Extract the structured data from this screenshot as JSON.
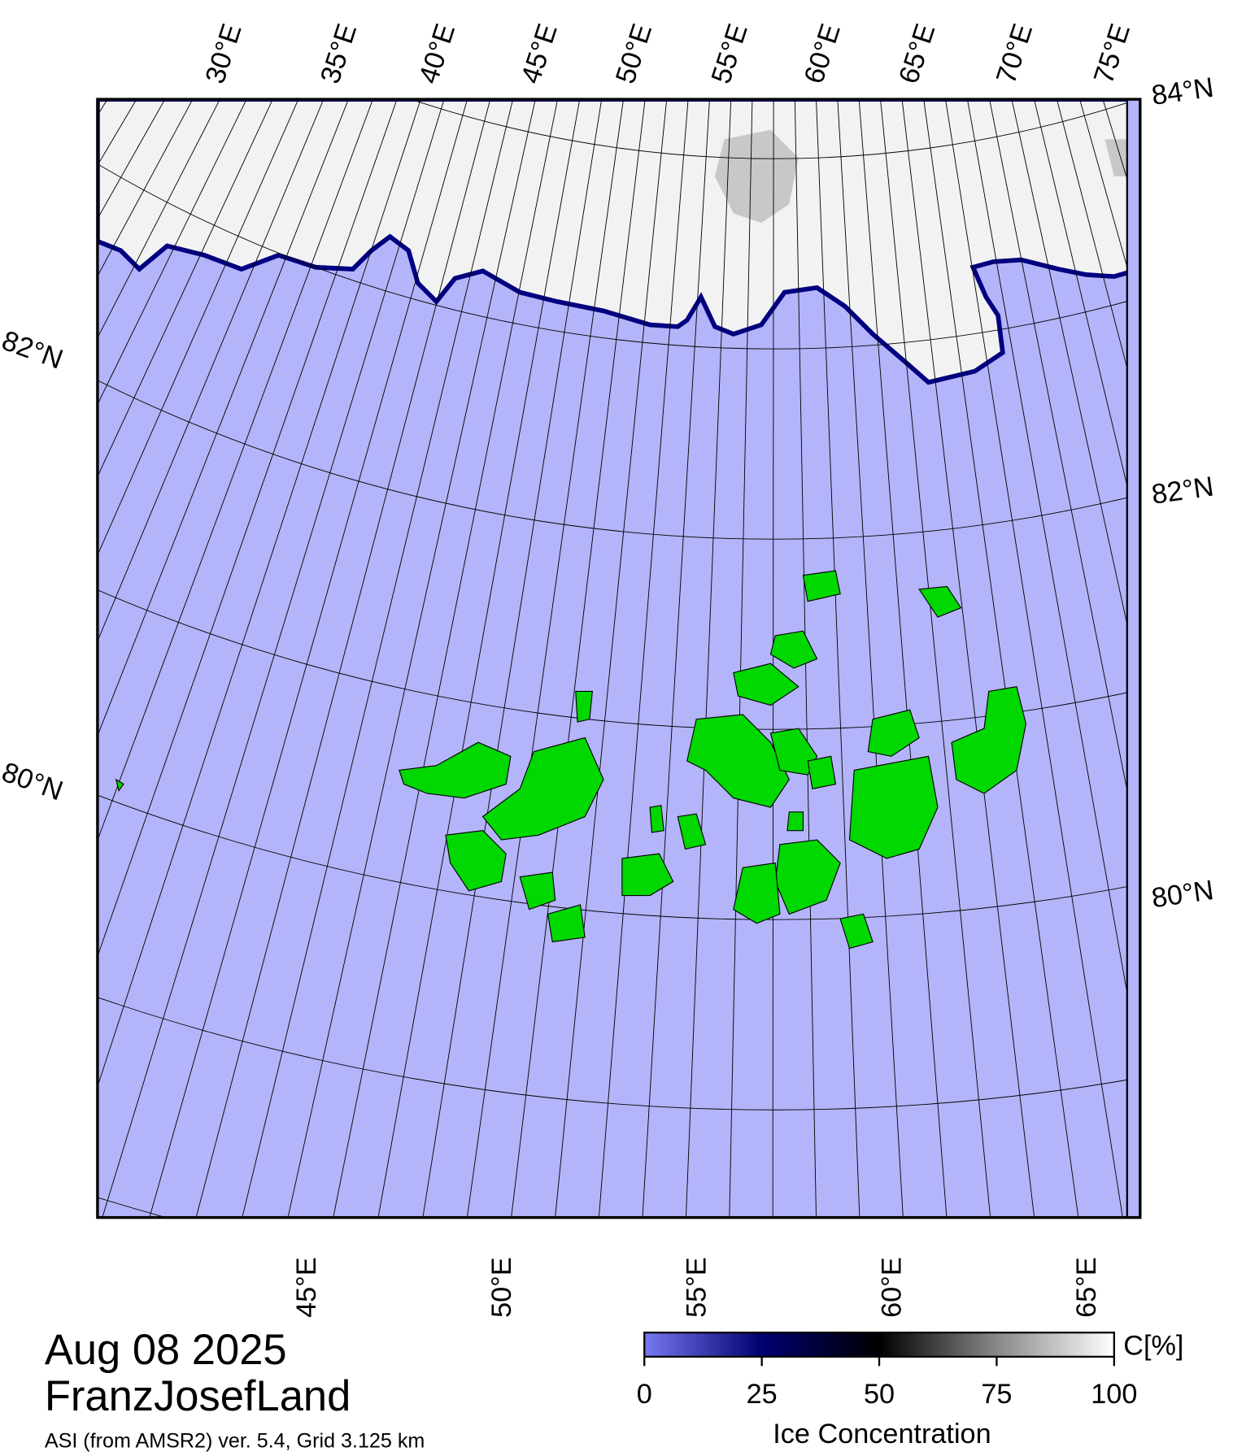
{
  "map": {
    "top_lon_labels": [
      "30°E",
      "35°E",
      "40°E",
      "45°E",
      "50°E",
      "55°E",
      "60°E",
      "65°E",
      "70°E",
      "75°E"
    ],
    "bottom_lon_labels": [
      "45°E",
      "50°E",
      "55°E",
      "60°E",
      "65°E"
    ],
    "left_lat_labels": [
      "82°N",
      "80°N"
    ],
    "right_lat_labels": [
      "84°N",
      "82°N",
      "80°N"
    ]
  },
  "footer": {
    "date": "Aug 08 2025",
    "region": "FranzJosefLand",
    "subtitle": "ASI (from AMSR2) ver. 5.4,  Grid 3.125 km"
  },
  "colorbar": {
    "label": "Ice Concentration",
    "unit": "C[%]",
    "range": [
      0,
      100
    ],
    "ticks": [
      0,
      25,
      50,
      75,
      100
    ]
  }
}
